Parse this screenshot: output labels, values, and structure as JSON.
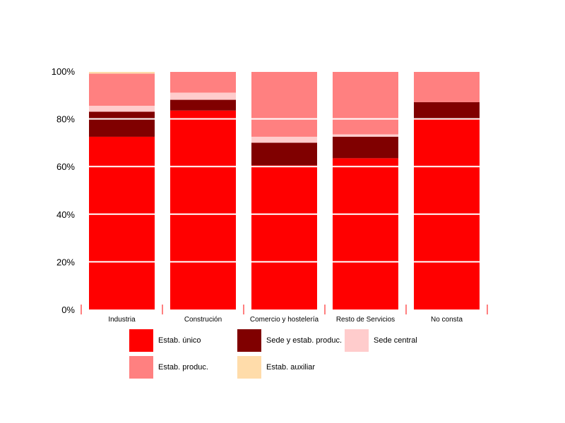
{
  "chart_data": {
    "type": "bar",
    "stacked": true,
    "percent": true,
    "categories": [
      "Industria",
      "Construción",
      "Comercio y hostelería",
      "Resto de Servicios",
      "No consta"
    ],
    "series": [
      {
        "name": "Estab. único",
        "color": "#ff0000",
        "values": [
          72.5,
          83.5,
          60.5,
          63.5,
          80
        ]
      },
      {
        "name": "Sede y estab. produc.",
        "color": "#800000",
        "values": [
          10.5,
          4.5,
          9.5,
          9.0,
          7
        ]
      },
      {
        "name": "Sede central",
        "color": "#ffcccc",
        "values": [
          2.5,
          3.0,
          2.5,
          1.0,
          0
        ]
      },
      {
        "name": "Estab. produc.",
        "color": "#ff8080",
        "values": [
          13.5,
          9.0,
          27.5,
          26.5,
          13
        ]
      },
      {
        "name": "Estab. auxiliar",
        "color": "#ffdcaa",
        "values": [
          1.0,
          0,
          0,
          0,
          0
        ]
      }
    ],
    "yticks": [
      "0%",
      "20%",
      "40%",
      "60%",
      "80%",
      "100%"
    ],
    "ylim": [
      0,
      100
    ],
    "grid": true,
    "legend_position": "bottom"
  },
  "legend": {
    "items": [
      {
        "label": "Estab. único",
        "color": "#ff0000"
      },
      {
        "label": "Sede y estab. produc.",
        "color": "#800000"
      },
      {
        "label": "Sede central",
        "color": "#ffcccc"
      },
      {
        "label": "Estab. produc.",
        "color": "#ff8080"
      },
      {
        "label": "Estab. auxiliar",
        "color": "#ffdcaa"
      }
    ]
  }
}
